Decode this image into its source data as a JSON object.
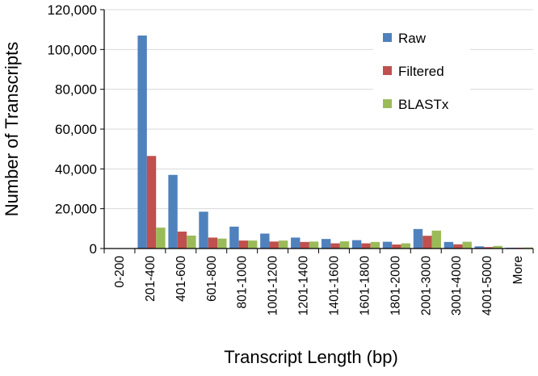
{
  "chart_data": {
    "type": "bar",
    "title": "",
    "xlabel": "Transcript Length (bp)",
    "ylabel": "Number of Transcripts",
    "ylim": [
      0,
      120000
    ],
    "yticks": [
      0,
      20000,
      40000,
      60000,
      80000,
      100000,
      120000
    ],
    "ytick_labels": [
      "0",
      "20,000",
      "40,000",
      "60,000",
      "80,000",
      "100,000",
      "120,000"
    ],
    "grid": "horizontal",
    "legend_position": "top-right",
    "categories": [
      "0-200",
      "201-400",
      "401-600",
      "601-800",
      "801-1000",
      "1001-1200",
      "1201-1400",
      "1401-1600",
      "1601-1800",
      "1801-2000",
      "2001-3000",
      "3001-4000",
      "4001-5000",
      "More"
    ],
    "series": [
      {
        "name": "Raw",
        "color": "#4f81bd",
        "values": [
          0,
          107000,
          37000,
          18500,
          11000,
          7500,
          5500,
          4800,
          4200,
          3400,
          9800,
          3300,
          1100,
          400
        ]
      },
      {
        "name": "Filtered",
        "color": "#c0504d",
        "values": [
          0,
          46500,
          8500,
          5500,
          4000,
          3500,
          3300,
          2600,
          2600,
          2000,
          6400,
          2100,
          700,
          400
        ]
      },
      {
        "name": "BLASTx",
        "color": "#9bbb59",
        "values": [
          0,
          10500,
          6500,
          5000,
          4000,
          4000,
          3500,
          3600,
          3300,
          2600,
          9000,
          3400,
          1300,
          500
        ]
      }
    ]
  }
}
